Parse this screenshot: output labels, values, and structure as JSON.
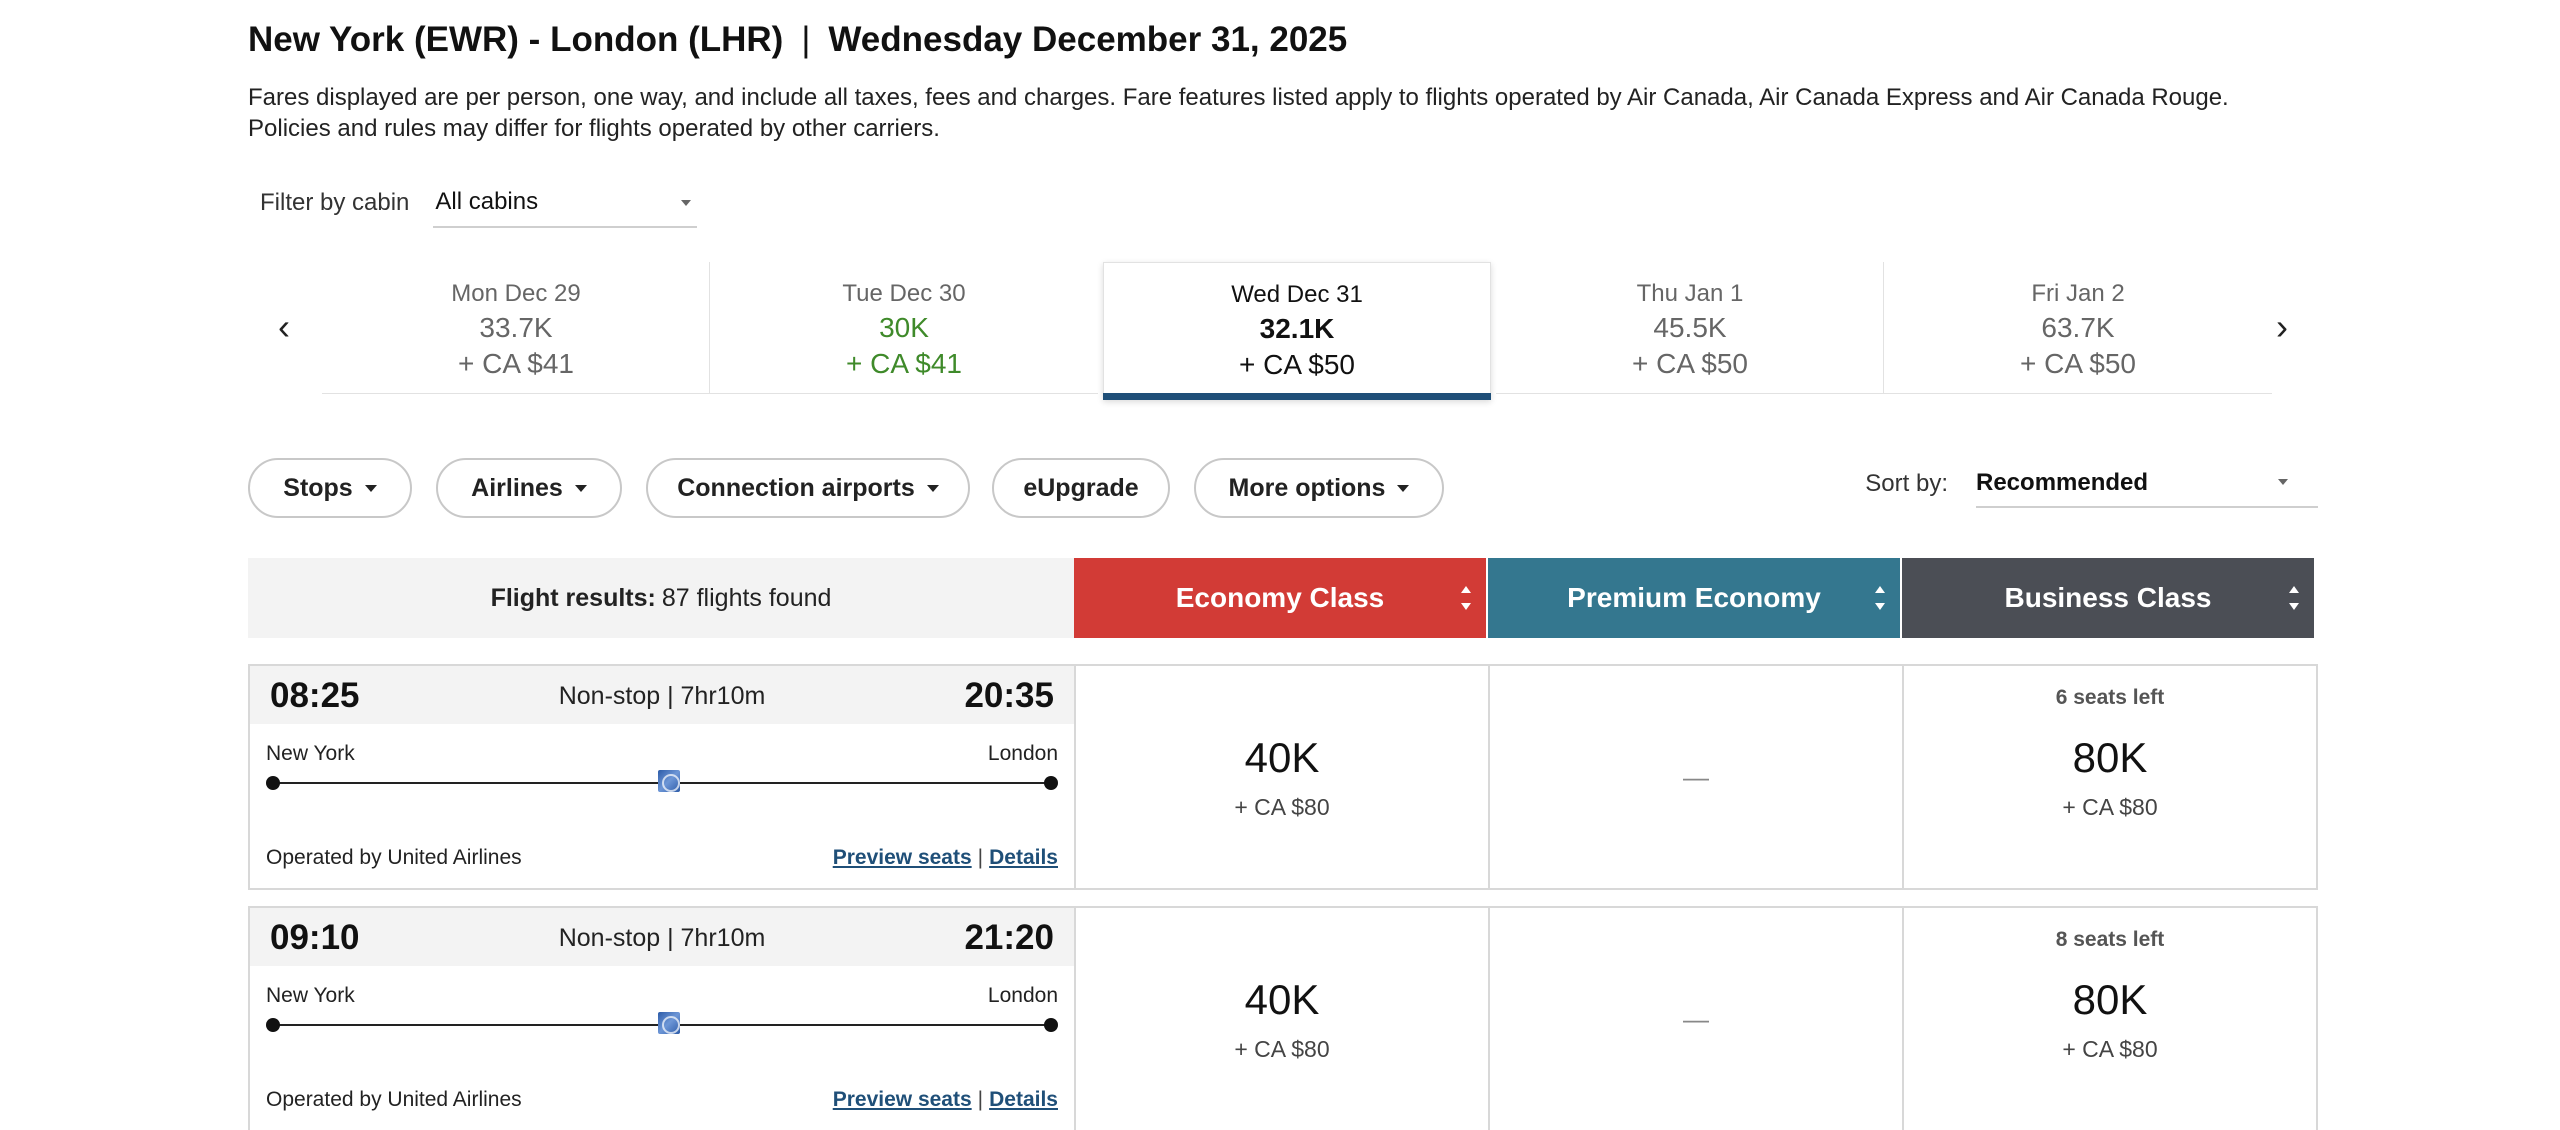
{
  "header": {
    "route": "New York (EWR) - London (LHR)",
    "separator": "|",
    "date": "Wednesday December 31, 2025",
    "disclaimer": "Fares displayed are per person, one way, and include all taxes, fees and charges. Fare features listed apply to flights operated by Air Canada, Air Canada Express and Air Canada Rouge. Policies and rules may differ for flights operated by other carriers."
  },
  "cabin_filter": {
    "label": "Filter by cabin",
    "value": "All cabins"
  },
  "date_strip": {
    "prev_icon": "chevron-left-icon",
    "next_icon": "chevron-right-icon",
    "dates": [
      {
        "day": "Mon Dec 29",
        "points": "33.7K",
        "cash": "+ CA $41"
      },
      {
        "day": "Tue Dec 30",
        "points": "30K",
        "cash": "+ CA $41"
      },
      {
        "day": "Wed Dec 31",
        "points": "32.1K",
        "cash": "+ CA $50"
      },
      {
        "day": "Thu Jan 1",
        "points": "45.5K",
        "cash": "+ CA $50"
      },
      {
        "day": "Fri Jan 2",
        "points": "63.7K",
        "cash": "+ CA $50"
      }
    ]
  },
  "filters": {
    "stops": "Stops",
    "airlines": "Airlines",
    "connection_airports": "Connection airports",
    "eupgrade": "eUpgrade",
    "more_options": "More options"
  },
  "sort": {
    "label": "Sort by:",
    "value": "Recommended"
  },
  "results": {
    "label": "Flight results:",
    "count": "87 flights found",
    "cabins": [
      {
        "name": "Economy Class",
        "color": "#d23b36"
      },
      {
        "name": "Premium Economy",
        "color": "#34778f"
      },
      {
        "name": "Business Class",
        "color": "#4b4e55"
      }
    ]
  },
  "flights": [
    {
      "depart": "08:25",
      "summary": "Non-stop | 7hr10m",
      "arrive": "20:35",
      "origin": "New York",
      "destination": "London",
      "operated_by": "Operated by United Airlines",
      "preview_seats": "Preview seats",
      "pipe": "|",
      "details": "Details",
      "economy": {
        "points": "40K",
        "cash": "+ CA $80"
      },
      "premium": {
        "text": "—"
      },
      "business": {
        "seats": "6 seats left",
        "points": "80K",
        "cash": "+ CA $80"
      }
    },
    {
      "depart": "09:10",
      "summary": "Non-stop | 7hr10m",
      "arrive": "21:20",
      "origin": "New York",
      "destination": "London",
      "operated_by": "Operated by United Airlines",
      "preview_seats": "Preview seats",
      "pipe": "|",
      "details": "Details",
      "economy": {
        "points": "40K",
        "cash": "+ CA $80"
      },
      "premium": {
        "text": "—"
      },
      "business": {
        "seats": "8 seats left",
        "points": "80K",
        "cash": "+ CA $80"
      }
    }
  ]
}
